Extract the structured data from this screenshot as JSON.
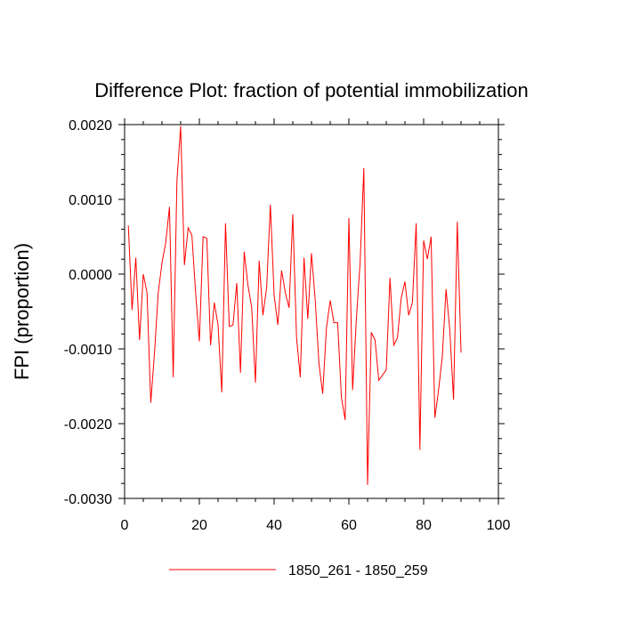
{
  "chart_data": {
    "type": "line",
    "title": "Difference Plot: fraction of potential immobilization",
    "xlabel": "",
    "ylabel": "FPI  (proportion)",
    "xlim": [
      0,
      100
    ],
    "ylim": [
      -0.003,
      0.002
    ],
    "x_ticks": [
      0,
      20,
      40,
      60,
      80,
      100
    ],
    "x_tick_labels": [
      "0",
      "20",
      "40",
      "60",
      "80",
      "100"
    ],
    "y_ticks": [
      -0.003,
      -0.002,
      -0.001,
      0.0,
      0.001,
      0.002
    ],
    "y_tick_labels": [
      "-0.0030",
      "-0.0020",
      "-0.0010",
      "0.0000",
      "0.0010",
      "0.0020"
    ],
    "legend_position": "bottom-center",
    "series": [
      {
        "name": "1850_261 - 1850_259",
        "color": "#ff0000",
        "x": [
          1,
          2,
          3,
          4,
          5,
          6,
          7,
          8,
          9,
          10,
          11,
          12,
          13,
          14,
          15,
          16,
          17,
          18,
          19,
          20,
          21,
          22,
          23,
          24,
          25,
          26,
          27,
          28,
          29,
          30,
          31,
          32,
          33,
          34,
          35,
          36,
          37,
          38,
          39,
          40,
          41,
          42,
          43,
          44,
          45,
          46,
          47,
          48,
          49,
          50,
          51,
          52,
          53,
          54,
          55,
          56,
          57,
          58,
          59,
          60,
          61,
          62,
          63,
          64,
          65,
          66,
          67,
          68,
          69,
          70,
          71,
          72,
          73,
          74,
          75,
          76,
          77,
          78,
          79,
          80,
          81,
          82,
          83,
          84,
          85,
          86,
          87,
          88,
          89,
          90
        ],
        "values": [
          0.00065,
          -0.00048,
          0.00022,
          -0.00088,
          0.0,
          -0.00025,
          -0.00172,
          -0.00105,
          -0.00025,
          0.00015,
          0.00042,
          0.0009,
          -0.00138,
          0.00125,
          0.00198,
          0.00012,
          0.00062,
          0.00052,
          -0.00025,
          -0.0009,
          0.0005,
          0.00048,
          -0.00095,
          -0.00038,
          -0.00068,
          -0.00158,
          0.00068,
          -0.0007,
          -0.00068,
          -0.00012,
          -0.00132,
          0.0003,
          -0.00015,
          -0.00045,
          -0.00145,
          0.00018,
          -0.00055,
          -0.00018,
          0.00093,
          -0.00028,
          -0.00068,
          5e-05,
          -0.00025,
          -0.00045,
          0.0008,
          -0.00085,
          -0.00138,
          0.00022,
          -0.0006,
          0.00028,
          -0.00035,
          -0.0012,
          -0.0016,
          -0.00072,
          -0.00035,
          -0.00065,
          -0.00065,
          -0.00165,
          -0.00195,
          0.00075,
          -0.00155,
          -0.0006,
          0.00015,
          0.00142,
          -0.00282,
          -0.00078,
          -0.00088,
          -0.00142,
          -0.00135,
          -0.00128,
          -5e-05,
          -0.00095,
          -0.00085,
          -0.00032,
          -0.0001,
          -0.00055,
          -0.00038,
          0.00068,
          -0.00235,
          0.00045,
          0.0002,
          0.0005,
          -0.00192,
          -0.00155,
          -0.0011,
          -0.0002,
          -0.00075,
          -0.00168,
          0.0007,
          -0.00105
        ]
      }
    ]
  }
}
